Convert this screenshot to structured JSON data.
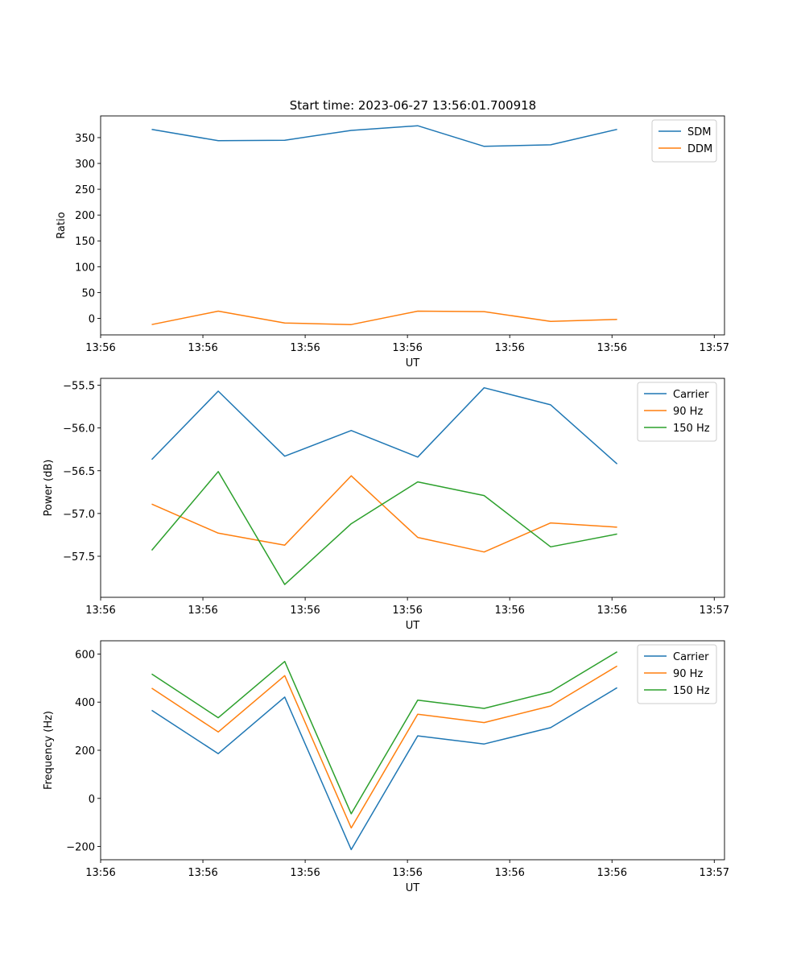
{
  "figure": {
    "title": "Start time: 2023-06-27 13:56:01.700918"
  },
  "chart_data": [
    {
      "type": "line",
      "xlabel": "UT",
      "ylabel": "Ratio",
      "xlim": [
        0,
        6.1
      ],
      "ylim": [
        -32,
        392
      ],
      "x": [
        0.5,
        1.15,
        1.8,
        2.45,
        3.1,
        3.75,
        4.4,
        5.05
      ],
      "xticks": [
        0,
        1,
        2,
        3,
        4,
        5,
        6
      ],
      "xtick_labels": [
        "13:56",
        "13:56",
        "13:56",
        "13:56",
        "13:56",
        "13:56",
        "13:57"
      ],
      "yticks": [
        0,
        50,
        100,
        150,
        200,
        250,
        300,
        350
      ],
      "ytick_labels": [
        "0",
        "50",
        "100",
        "150",
        "200",
        "250",
        "300",
        "350"
      ],
      "legend_position": "top-right",
      "series": [
        {
          "name": "SDM",
          "color": "#1f77b4",
          "values": [
            366,
            344,
            345,
            364,
            373,
            333,
            336,
            366
          ]
        },
        {
          "name": "DDM",
          "color": "#ff7f0e",
          "values": [
            -12,
            14,
            -9,
            -12,
            14,
            13,
            -6,
            -2
          ]
        }
      ]
    },
    {
      "type": "line",
      "xlabel": "UT",
      "ylabel": "Power (dB)",
      "xlim": [
        0,
        6.1
      ],
      "ylim": [
        -57.98,
        -55.42
      ],
      "x": [
        0.5,
        1.15,
        1.8,
        2.45,
        3.1,
        3.75,
        4.4,
        5.05
      ],
      "xticks": [
        0,
        1,
        2,
        3,
        4,
        5,
        6
      ],
      "xtick_labels": [
        "13:56",
        "13:56",
        "13:56",
        "13:56",
        "13:56",
        "13:56",
        "13:57"
      ],
      "yticks": [
        -57.5,
        -57.0,
        -56.5,
        -56.0,
        -55.5
      ],
      "ytick_labels": [
        "−57.5",
        "−57.0",
        "−56.5",
        "−56.0",
        "−55.5"
      ],
      "legend_position": "top-right",
      "series": [
        {
          "name": "Carrier",
          "color": "#1f77b4",
          "values": [
            -56.37,
            -55.57,
            -56.33,
            -56.03,
            -56.34,
            -55.53,
            -55.73,
            -56.42
          ]
        },
        {
          "name": "90 Hz",
          "color": "#ff7f0e",
          "values": [
            -56.89,
            -57.23,
            -57.37,
            -56.56,
            -57.28,
            -57.45,
            -57.11,
            -57.16
          ]
        },
        {
          "name": "150 Hz",
          "color": "#2ca02c",
          "values": [
            -57.43,
            -56.51,
            -57.83,
            -57.12,
            -56.63,
            -56.79,
            -57.39,
            -57.24
          ]
        }
      ]
    },
    {
      "type": "line",
      "xlabel": "UT",
      "ylabel": "Frequency (Hz)",
      "xlim": [
        0,
        6.1
      ],
      "ylim": [
        -255,
        655
      ],
      "x": [
        0.5,
        1.15,
        1.8,
        2.45,
        3.1,
        3.75,
        4.4,
        5.05
      ],
      "xticks": [
        0,
        1,
        2,
        3,
        4,
        5,
        6
      ],
      "xtick_labels": [
        "13:56",
        "13:56",
        "13:56",
        "13:56",
        "13:56",
        "13:56",
        "13:57"
      ],
      "yticks": [
        -200,
        0,
        200,
        400,
        600
      ],
      "ytick_labels": [
        "−200",
        "0",
        "200",
        "400",
        "600"
      ],
      "legend_position": "top-right",
      "series": [
        {
          "name": "Carrier",
          "color": "#1f77b4",
          "values": [
            366,
            186,
            421,
            -213,
            260,
            226,
            294,
            460
          ]
        },
        {
          "name": "90 Hz",
          "color": "#ff7f0e",
          "values": [
            458,
            276,
            510,
            -123,
            350,
            315,
            384,
            550
          ]
        },
        {
          "name": "150 Hz",
          "color": "#2ca02c",
          "values": [
            517,
            335,
            569,
            -64,
            408,
            374,
            443,
            609
          ]
        }
      ]
    }
  ]
}
